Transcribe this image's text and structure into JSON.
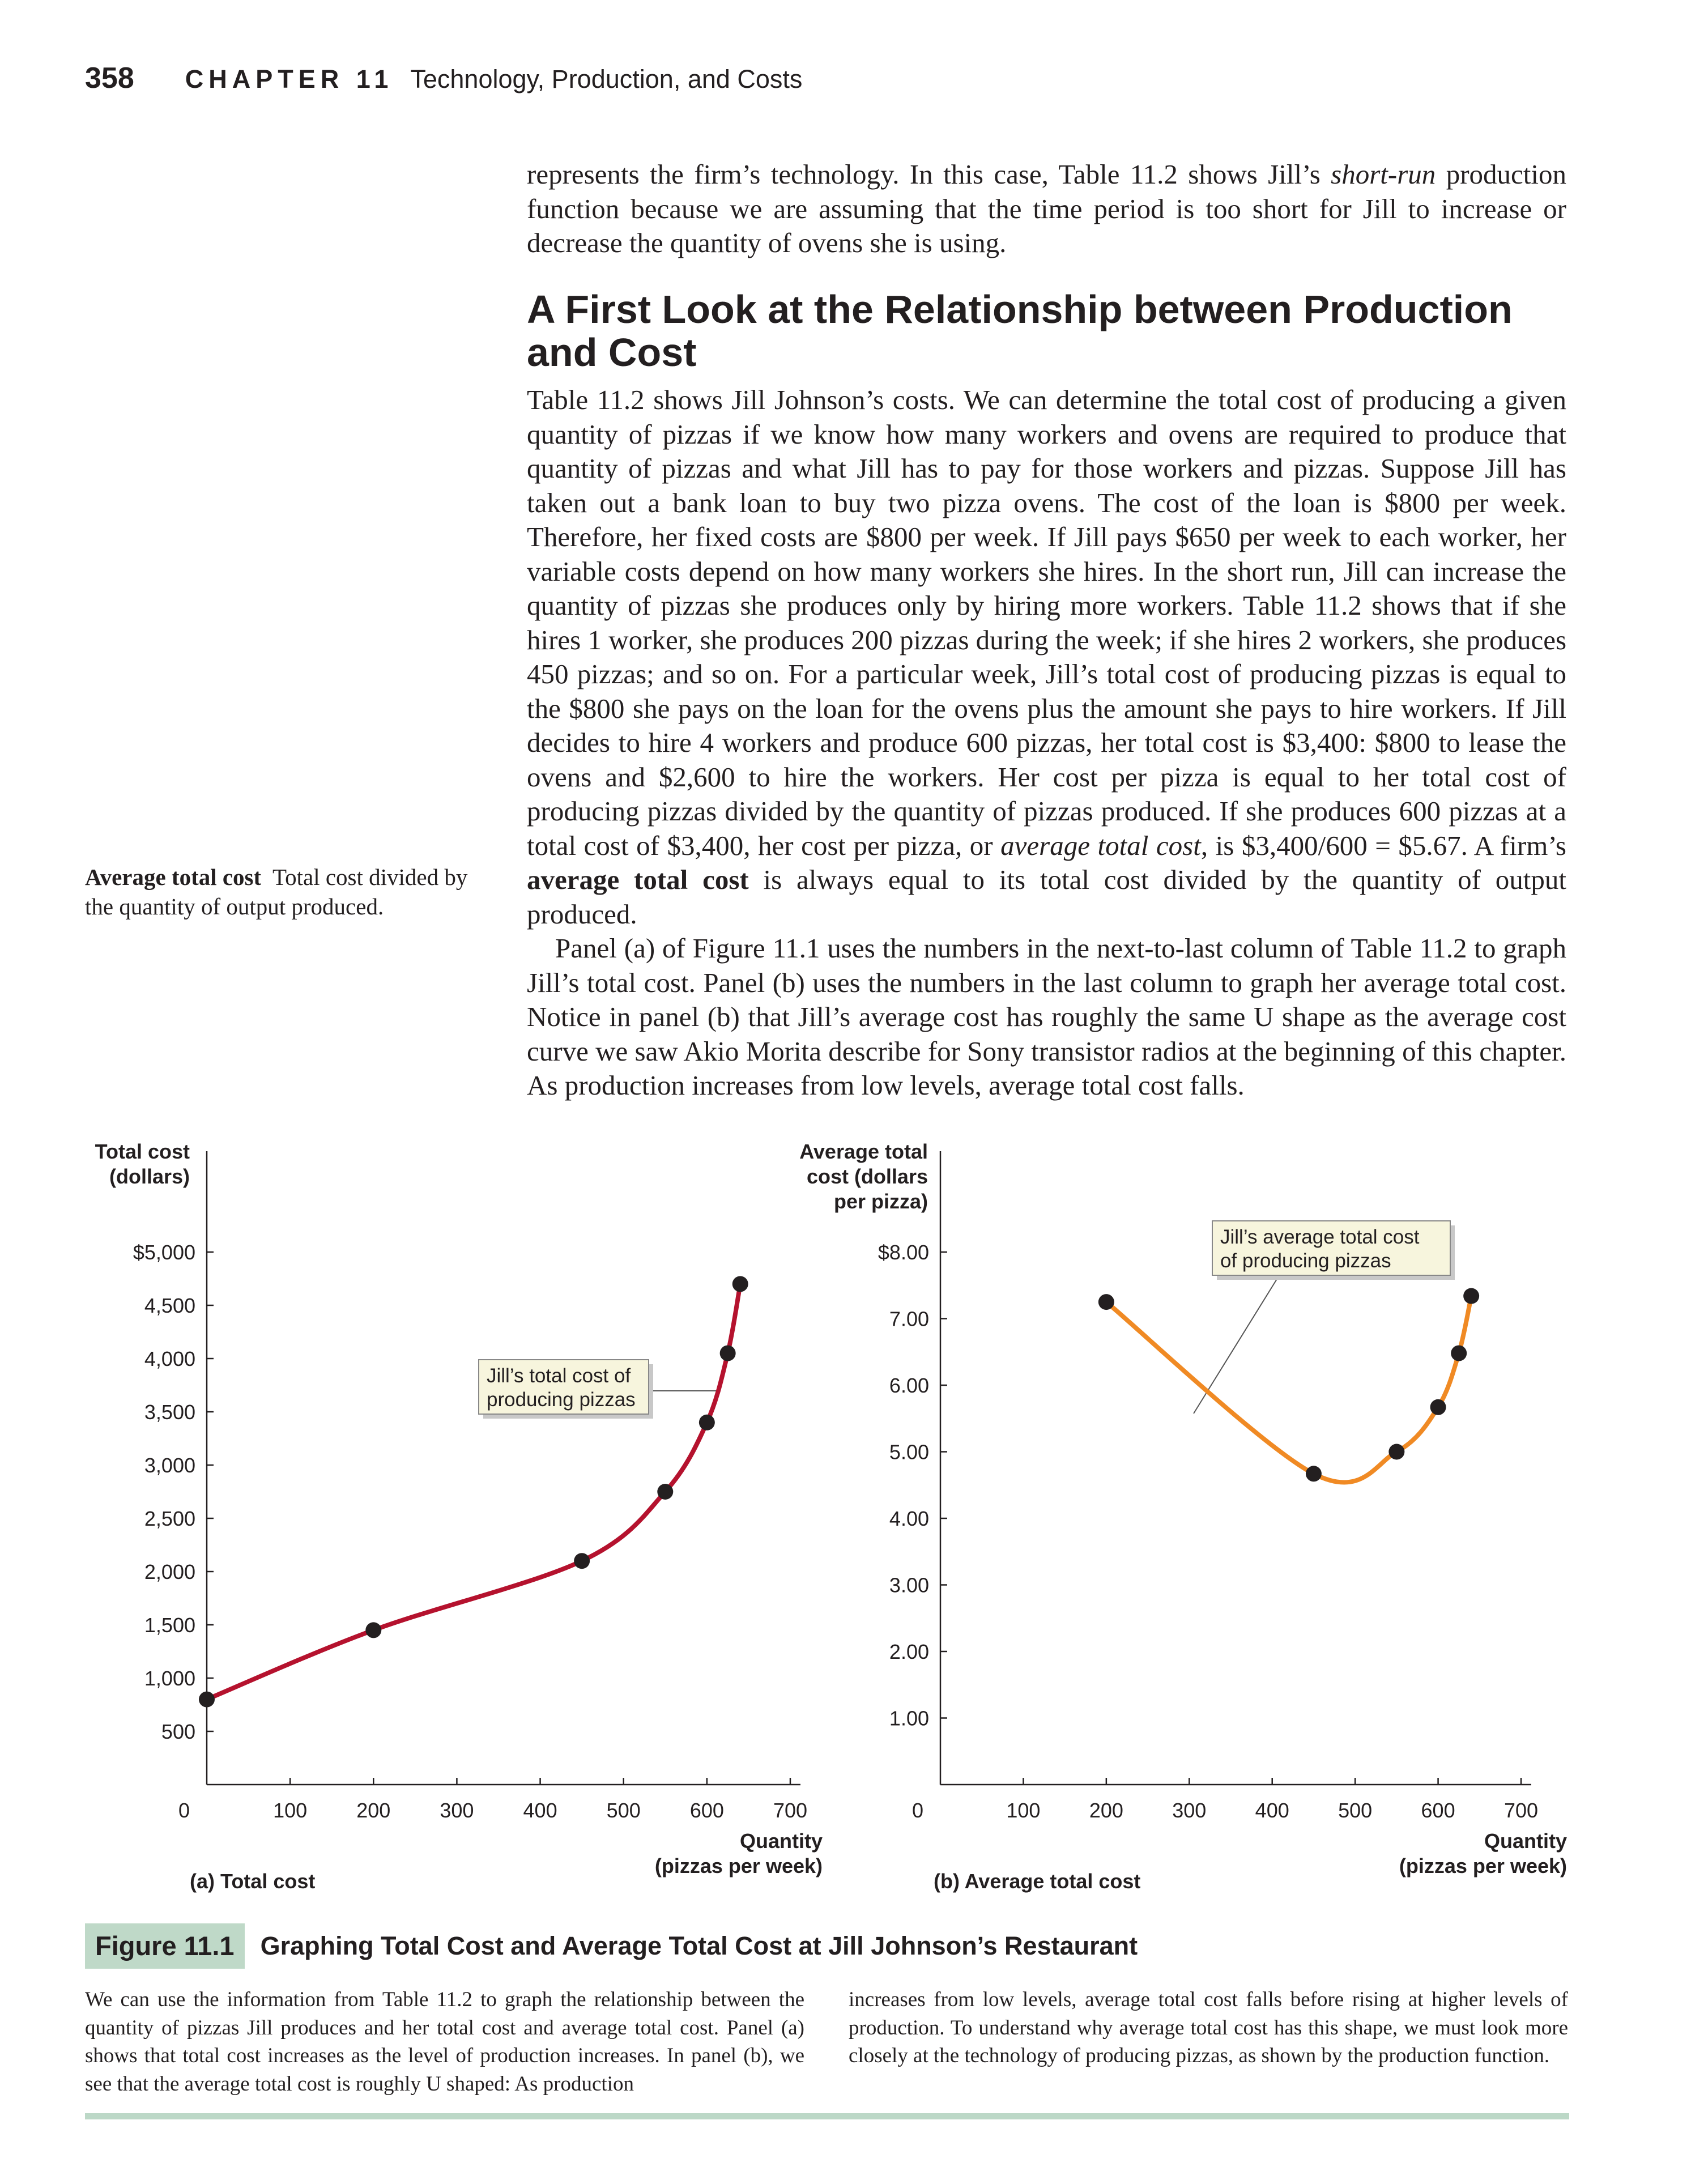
{
  "header": {
    "page_number": "358",
    "chapter_label": "CHAPTER 11",
    "chapter_title": "Technology, Production, and Costs"
  },
  "intro_html": "represents the firm’s technology. In this case, Table 11.2 shows Jill’s <i>short-run</i> production function because we are assuming that the time period is too short for Jill to increase or decrease the quantity of ovens she is using.",
  "section_heading": "A First Look at the Relationship between Production and Cost",
  "paragraph1_html": "Table 11.2 shows Jill Johnson’s costs. We can determine the total cost of producing a given quantity of pizzas if we know how many workers and ovens are required to produce that quantity of pizzas and what Jill has to pay for those workers and pizzas. Suppose Jill has taken out a bank loan to buy two pizza ovens. The cost of the loan is $800 per week. Therefore, her fixed costs are $800 per week. If Jill pays $650 per week to each worker, her variable costs depend on how many workers she hires. In the short run, Jill can increase the quantity of pizzas she produces only by hiring more workers. Table 11.2 shows that if she hires 1 worker, she produces 200 pizzas during the week; if she hires 2 workers, she produces 450 pizzas; and so on. For a particular week, Jill’s total cost of producing pizzas is equal to the $800 she pays on the loan for the ovens plus the amount she pays to hire workers. If Jill decides to hire 4 workers and produce 600 pizzas, her total cost is $3,400: $800 to lease the ovens and $2,600 to hire the workers. Her cost per pizza is equal to her total cost of producing pizzas divided by the quantity of pizzas produced. If she produces 600 pizzas at a total cost of $3,400, her cost per pizza, or <i>average total cost</i>, is $3,400/600 = $5.67. A firm’s <b>average total cost</b> is always equal to its total cost divided by the quantity of output produced.",
  "paragraph2_html": "Panel (a) of Figure 11.1 uses the numbers in the next-to-last column of Table 11.2 to graph Jill’s total cost. Panel (b) uses the numbers in the last column to graph her average total cost. Notice in panel (b) that Jill’s average cost has roughly the same U shape as the average cost curve we saw Akio Morita describe for Sony transistor radios at the beginning of this chapter. As production increases from low levels, average total cost falls.",
  "margin_definition": {
    "term": "Average total cost",
    "definition": "Total cost divided by the quantity of output produced."
  },
  "chart_data": [
    {
      "type": "line",
      "panel_label": "(a) Total cost",
      "ylabel_lines": [
        "Total cost",
        "(dollars)"
      ],
      "xlabel_lines": [
        "Quantity",
        "(pizzas per week)"
      ],
      "xlim": [
        0,
        700
      ],
      "ylim": [
        0,
        5000
      ],
      "x_ticks": [
        0,
        100,
        200,
        300,
        400,
        500,
        600,
        700
      ],
      "x_tick_labels": [
        "0",
        "100",
        "200",
        "300",
        "400",
        "500",
        "600",
        "700"
      ],
      "y_ticks": [
        500,
        1000,
        1500,
        2000,
        2500,
        3000,
        3500,
        4000,
        4500,
        5000
      ],
      "y_tick_labels": [
        "500",
        "1,000",
        "1,500",
        "2,000",
        "2,500",
        "3,000",
        "3,500",
        "4,000",
        "4,500",
        "$5,000"
      ],
      "annotation_lines": [
        "Jill’s total cost of",
        "producing pizzas"
      ],
      "line_color": "#b5122e",
      "points": [
        {
          "x": 0,
          "y": 800
        },
        {
          "x": 200,
          "y": 1450
        },
        {
          "x": 450,
          "y": 2100
        },
        {
          "x": 550,
          "y": 2750
        },
        {
          "x": 600,
          "y": 3400
        },
        {
          "x": 625,
          "y": 4050
        },
        {
          "x": 640,
          "y": 4700
        }
      ]
    },
    {
      "type": "line",
      "panel_label": "(b) Average total cost",
      "ylabel_lines": [
        "Average total",
        "cost (dollars",
        "per pizza)"
      ],
      "xlabel_lines": [
        "Quantity",
        "(pizzas per week)"
      ],
      "xlim": [
        0,
        700
      ],
      "ylim": [
        0,
        8
      ],
      "x_ticks": [
        0,
        100,
        200,
        300,
        400,
        500,
        600,
        700
      ],
      "x_tick_labels": [
        "0",
        "100",
        "200",
        "300",
        "400",
        "500",
        "600",
        "700"
      ],
      "y_ticks": [
        1,
        2,
        3,
        4,
        5,
        6,
        7,
        8
      ],
      "y_tick_labels": [
        "1.00",
        "2.00",
        "3.00",
        "4.00",
        "5.00",
        "6.00",
        "7.00",
        "$8.00"
      ],
      "annotation_lines": [
        "Jill’s average total cost",
        "of producing pizzas"
      ],
      "line_color": "#f08a24",
      "points": [
        {
          "x": 200,
          "y": 7.25
        },
        {
          "x": 450,
          "y": 4.67
        },
        {
          "x": 550,
          "y": 5.0
        },
        {
          "x": 600,
          "y": 5.67
        },
        {
          "x": 625,
          "y": 6.48
        },
        {
          "x": 640,
          "y": 7.34
        }
      ]
    }
  ],
  "figure": {
    "label": "Figure 11.1",
    "title": "Graphing Total Cost and Average Total Cost at Jill Johnson’s Restaurant",
    "caption_left": "We can use the information from Table 11.2 to graph the relationship between the quantity of pizzas Jill produces and her total cost and average total cost. Panel (a) shows that total cost increases as the level of production increases. In panel (b), we see that the average total cost is roughly U shaped: As production",
    "caption_right": "increases from low levels, average total cost falls before rising at higher levels of production. To understand why average total cost has this shape, we must look more closely at the technology of producing pizzas, as shown by the production function."
  },
  "colors": {
    "total_cost_line": "#b5122e",
    "average_cost_line": "#f08a24",
    "figure_label_bg": "#bfd9c8",
    "callout_bg": "#f7f5dd",
    "rule": "#bcd8c7"
  }
}
